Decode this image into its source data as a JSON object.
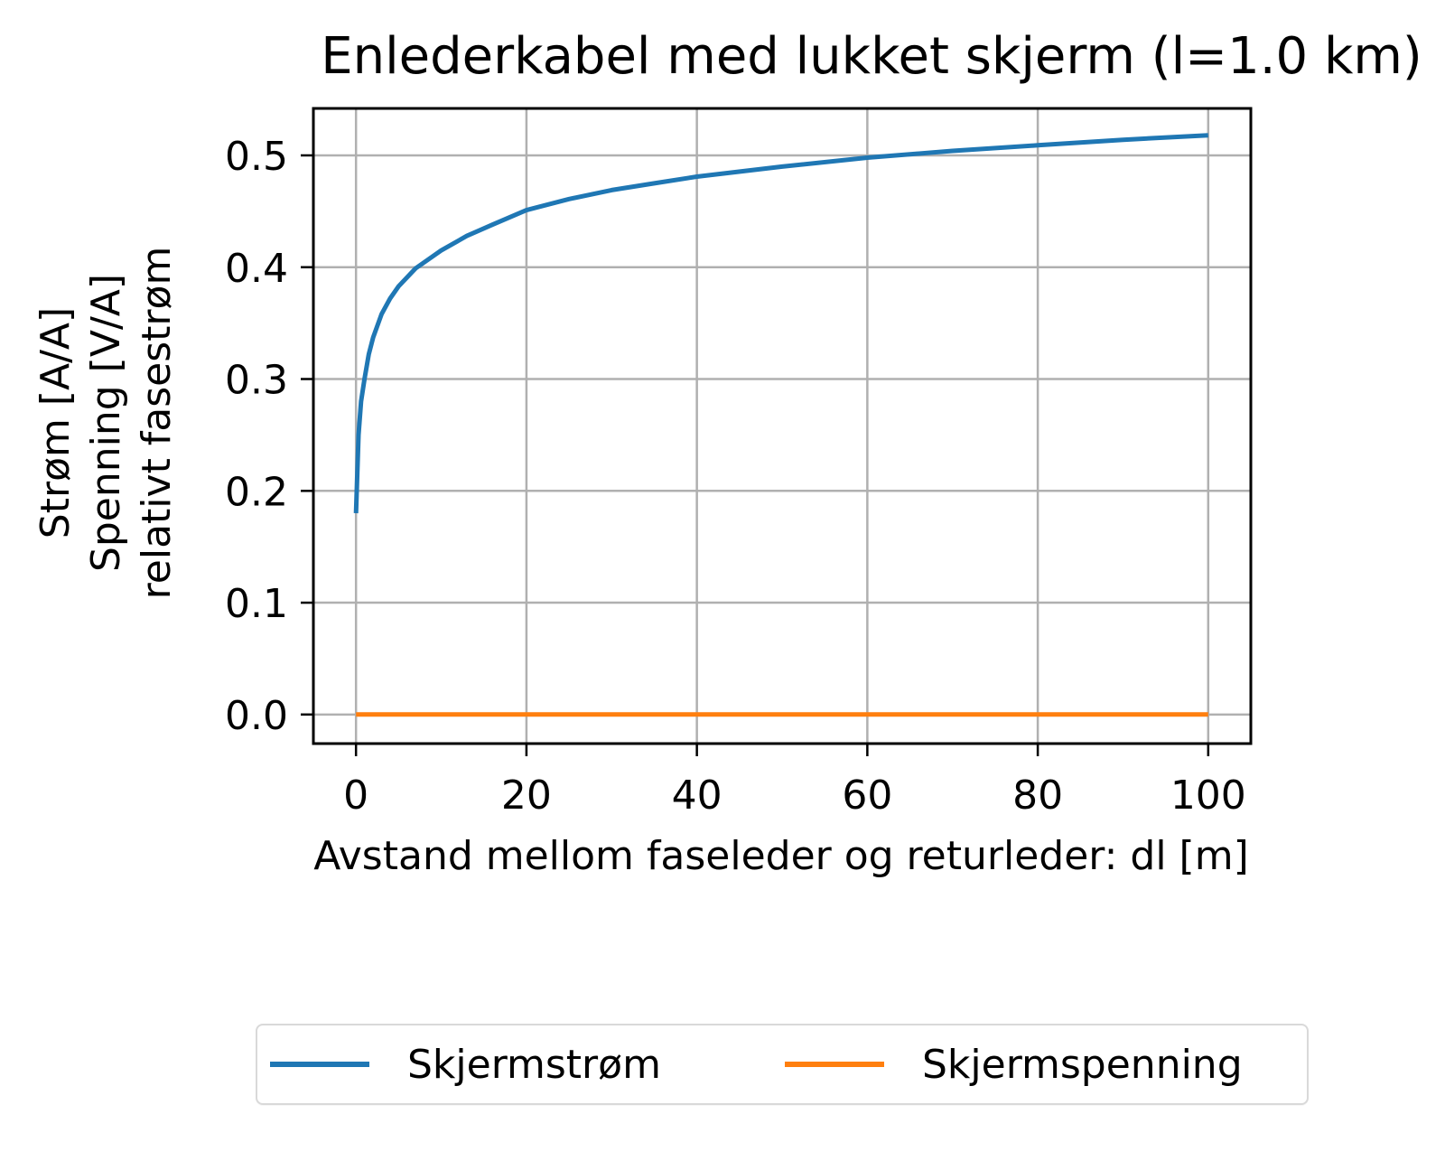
{
  "chart_data": {
    "type": "line",
    "title": "Enlederkabel med lukket skjerm (l=1.0 km)",
    "xlabel": "Avstand mellom faseleder og returleder: dl [m]",
    "ylabel": [
      "Strøm [A/A]",
      "Spenning [V/A]",
      "relativt fasestrøm"
    ],
    "xlim": [
      -5,
      105
    ],
    "ylim": [
      -0.026,
      0.542
    ],
    "xticks": [
      0,
      20,
      40,
      60,
      80,
      100
    ],
    "xtick_labels": [
      "0",
      "20",
      "40",
      "60",
      "80",
      "100"
    ],
    "yticks": [
      0.0,
      0.1,
      0.2,
      0.3,
      0.4,
      0.5
    ],
    "ytick_labels": [
      "0.0",
      "0.1",
      "0.2",
      "0.3",
      "0.4",
      "0.5"
    ],
    "grid": true,
    "legend_position": "below plot, outside",
    "series": [
      {
        "name": "Skjermstrøm",
        "color": "#1f77b4",
        "x": [
          0,
          0.3,
          0.6,
          1,
          1.5,
          2,
          3,
          4,
          5,
          7,
          10,
          13,
          16,
          20,
          25,
          30,
          35,
          40,
          50,
          60,
          70,
          80,
          90,
          100
        ],
        "y": [
          0.18,
          0.25,
          0.28,
          0.3,
          0.322,
          0.337,
          0.358,
          0.372,
          0.383,
          0.399,
          0.415,
          0.428,
          0.438,
          0.451,
          0.461,
          0.469,
          0.475,
          0.481,
          0.49,
          0.498,
          0.504,
          0.509,
          0.514,
          0.518
        ]
      },
      {
        "name": "Skjermspenning",
        "color": "#ff7f0e",
        "x": [
          0,
          100
        ],
        "y": [
          0.0,
          0.0
        ]
      }
    ]
  },
  "legend": {
    "items": [
      {
        "label": "Skjermstrøm",
        "color": "#1f77b4"
      },
      {
        "label": "Skjermspenning",
        "color": "#ff7f0e"
      }
    ]
  }
}
